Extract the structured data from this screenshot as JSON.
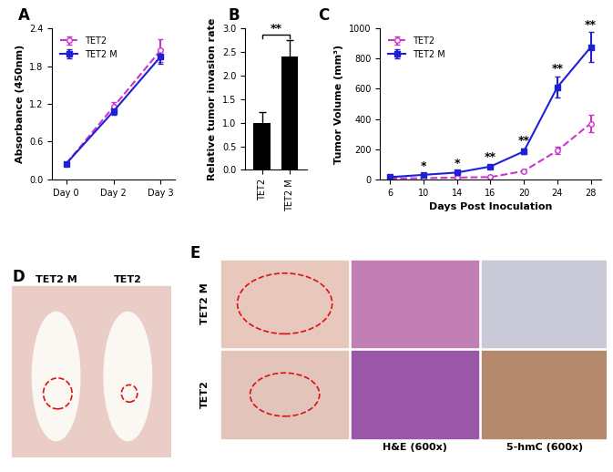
{
  "chart_data": [
    {
      "title": "A",
      "type": "line",
      "categories": [
        "Day 0",
        "Day 2",
        "Day 3"
      ],
      "y_label": "Absorbance (450nm)",
      "ylim": [
        0.0,
        2.4
      ],
      "yticks": [
        0.0,
        0.6,
        1.2,
        1.8,
        2.4
      ],
      "legend": "upper left",
      "series": [
        {
          "name": "TET2",
          "color": "#cc33cc",
          "line_style": "dashed",
          "marker": "circle",
          "values": [
            0.25,
            1.15,
            2.05
          ],
          "errors": [
            0.02,
            0.08,
            0.18
          ]
        },
        {
          "name": "TET2 M",
          "color": "#1f1fd6",
          "line_style": "solid",
          "marker": "square",
          "values": [
            0.25,
            1.08,
            1.95
          ],
          "errors": [
            0.02,
            0.05,
            0.12
          ]
        }
      ]
    },
    {
      "title": "B",
      "type": "bar",
      "categories": [
        "TET2",
        "TET2 M"
      ],
      "values": [
        1.0,
        2.4
      ],
      "errors": [
        0.22,
        0.35
      ],
      "color": "#000000",
      "y_label": "Relative tumor invasion rate",
      "ylim": [
        0.0,
        3.0
      ],
      "yticks": [
        0.0,
        0.5,
        1.0,
        1.5,
        2.0,
        2.5,
        3.0
      ],
      "significance": "**"
    },
    {
      "title": "C",
      "type": "line",
      "categories": [
        "6",
        "10",
        "14",
        "16",
        "20",
        "24",
        "28"
      ],
      "x_label": "Days Post Inoculation",
      "y_label": "Tumor Volume (mm³)",
      "ylim": [
        0,
        1000
      ],
      "yticks": [
        0,
        200,
        400,
        600,
        800,
        1000
      ],
      "legend": "upper left",
      "significance": [
        null,
        "*",
        "*",
        "**",
        "**",
        "**",
        "**"
      ],
      "series": [
        {
          "name": "TET2",
          "color": "#cc33cc",
          "line_style": "dashed",
          "marker": "circle",
          "values": [
            5,
            8,
            12,
            15,
            55,
            190,
            370
          ],
          "errors": [
            2,
            3,
            4,
            5,
            10,
            25,
            55
          ]
        },
        {
          "name": "TET2 M",
          "color": "#1f1fd6",
          "line_style": "solid",
          "marker": "square",
          "values": [
            15,
            30,
            45,
            85,
            185,
            610,
            875
          ],
          "errors": [
            4,
            5,
            8,
            10,
            20,
            70,
            100
          ]
        }
      ]
    }
  ],
  "images": [
    {
      "title": "D",
      "labels": [
        "TET2 M",
        "TET2"
      ]
    },
    {
      "title": "E",
      "rows": [
        "TET2 M",
        "TET2"
      ],
      "columns": [
        "H&E (600x)",
        "5-hmC (600x)"
      ]
    }
  ]
}
